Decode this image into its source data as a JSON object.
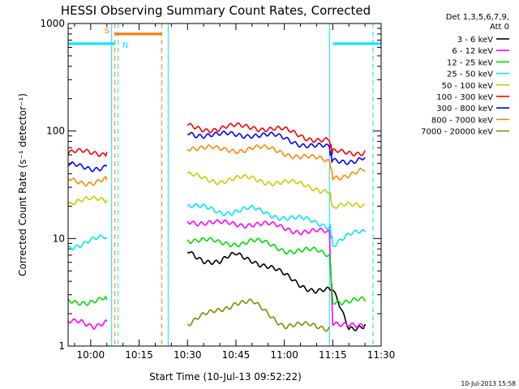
{
  "chart_data": {
    "type": "line",
    "title": "HESSI Observing Summary Count Rates, Corrected",
    "ylabel": "Corrected Count Rate (s⁻¹ detector⁻¹)",
    "xlabel": "Start Time (10-Jul-13 09:52:22)",
    "timestamp": "10-Jul-2013 15:58",
    "y_scale": "log",
    "ylim": [
      1,
      1000
    ],
    "y_ticks": [
      {
        "value": 1,
        "label": "1"
      },
      {
        "value": 10,
        "label": "10"
      },
      {
        "value": 100,
        "label": "100"
      },
      {
        "value": 1000,
        "label": "1000"
      }
    ],
    "xlim_minutes": [
      -7,
      90
    ],
    "x_ticks": [
      {
        "value": 0,
        "label": "10:00"
      },
      {
        "value": 15,
        "label": "10:15"
      },
      {
        "value": 30,
        "label": "10:30"
      },
      {
        "value": 45,
        "label": "10:45"
      },
      {
        "value": 60,
        "label": "11:00"
      },
      {
        "value": 75,
        "label": "11:15"
      },
      {
        "value": 90,
        "label": "11:30"
      }
    ],
    "legend_header": [
      "Det 1,3,5,6,7,9,",
      "Att 0"
    ],
    "legend_position": "right",
    "series": [
      {
        "name": "3 - 6 keV",
        "color": "#000000",
        "points": [
          [
            30,
            7.5
          ],
          [
            35,
            6.5
          ],
          [
            40,
            6
          ],
          [
            45,
            7
          ],
          [
            50,
            6.5
          ],
          [
            55,
            5.5
          ],
          [
            60,
            4.5
          ],
          [
            65,
            3.8
          ],
          [
            70,
            3.3
          ],
          [
            75,
            3.2
          ],
          [
            80,
            1.5
          ],
          [
            85,
            1.6
          ]
        ]
      },
      {
        "name": "6 - 12 keV",
        "color": "#ff00ff",
        "points": [
          [
            -7,
            1.6
          ],
          [
            -3,
            1.7
          ],
          [
            1,
            1.6
          ],
          [
            5,
            1.7
          ],
          [
            30,
            15
          ],
          [
            40,
            13.5
          ],
          [
            50,
            14
          ],
          [
            60,
            12.5
          ],
          [
            70,
            11.5
          ],
          [
            74,
            11
          ],
          [
            75,
            1.6
          ],
          [
            80,
            1.7
          ],
          [
            85,
            1.5
          ]
        ]
      },
      {
        "name": "12 - 25 keV",
        "color": "#00dd00",
        "points": [
          [
            -7,
            2.6
          ],
          [
            5,
            2.7
          ],
          [
            30,
            10
          ],
          [
            40,
            9
          ],
          [
            50,
            9.5
          ],
          [
            60,
            8
          ],
          [
            70,
            7.5
          ],
          [
            74,
            7
          ],
          [
            75,
            2.7
          ],
          [
            85,
            2.6
          ]
        ]
      },
      {
        "name": "25 - 50 keV",
        "color": "#00e5ff",
        "points": [
          [
            -7,
            8.5
          ],
          [
            0,
            9.5
          ],
          [
            5,
            10
          ],
          [
            30,
            20
          ],
          [
            40,
            18
          ],
          [
            50,
            18.5
          ],
          [
            60,
            16
          ],
          [
            70,
            14
          ],
          [
            74,
            13.5
          ],
          [
            75,
            9
          ],
          [
            80,
            10.5
          ],
          [
            85,
            11.5
          ]
        ]
      },
      {
        "name": "50 - 100 keV",
        "color": "#cccc00",
        "points": [
          [
            -7,
            22
          ],
          [
            0,
            22.5
          ],
          [
            5,
            23
          ],
          [
            30,
            38
          ],
          [
            40,
            35
          ],
          [
            50,
            36
          ],
          [
            60,
            33
          ],
          [
            70,
            30
          ],
          [
            74,
            28
          ],
          [
            75,
            19
          ],
          [
            80,
            20
          ],
          [
            85,
            21
          ]
        ]
      },
      {
        "name": "100 - 300 keV",
        "color": "#ff0000",
        "points": [
          [
            -7,
            63
          ],
          [
            0,
            62
          ],
          [
            5,
            64
          ],
          [
            30,
            110
          ],
          [
            40,
            105
          ],
          [
            50,
            112
          ],
          [
            60,
            100
          ],
          [
            70,
            85
          ],
          [
            74,
            80
          ],
          [
            75,
            62
          ],
          [
            80,
            63
          ],
          [
            85,
            66
          ]
        ]
      },
      {
        "name": "300 - 800 keV",
        "color": "#0000ff",
        "points": [
          [
            -7,
            47
          ],
          [
            0,
            46
          ],
          [
            5,
            48
          ],
          [
            30,
            98
          ],
          [
            40,
            90
          ],
          [
            50,
            95
          ],
          [
            60,
            85
          ],
          [
            70,
            72
          ],
          [
            74,
            68
          ],
          [
            75,
            52
          ],
          [
            80,
            54
          ],
          [
            85,
            57
          ]
        ]
      },
      {
        "name": "800 - 7000 keV",
        "color": "#ff8800",
        "points": [
          [
            -7,
            35
          ],
          [
            0,
            34
          ],
          [
            5,
            35
          ],
          [
            30,
            73
          ],
          [
            40,
            66
          ],
          [
            50,
            70
          ],
          [
            60,
            64
          ],
          [
            70,
            54
          ],
          [
            74,
            52
          ],
          [
            75,
            38
          ],
          [
            80,
            40
          ],
          [
            85,
            42
          ]
        ]
      },
      {
        "name": "7000 - 20000 keV",
        "color": "#888800",
        "points": [
          [
            30,
            1.6
          ],
          [
            40,
            2.2
          ],
          [
            45,
            2.6
          ],
          [
            50,
            2.5
          ],
          [
            55,
            2
          ],
          [
            60,
            1.6
          ],
          [
            70,
            1.5
          ],
          [
            74,
            1.5
          ]
        ]
      }
    ],
    "saa_flag": {
      "label": "S",
      "color": "#ff7700",
      "value": 800,
      "x_start": 7.5,
      "x_end": 22
    },
    "night_flag": {
      "label": "N",
      "color": "#00e5ff",
      "value": 650,
      "segments": [
        [
          -7,
          7.5
        ],
        [
          75,
          90
        ]
      ]
    },
    "dashed_lines": [
      {
        "x": 7.5,
        "color": "#ff7700"
      },
      {
        "x": 22,
        "color": "#ff7700"
      },
      {
        "x": 8.5,
        "color": "#00e5ff"
      },
      {
        "x": 87.5,
        "color": "#00e5ff"
      }
    ],
    "solid_lines": [
      {
        "x": 6.5,
        "color": "#00e5ff"
      },
      {
        "x": 24,
        "color": "#00e5ff"
      },
      {
        "x": 74,
        "color": "#00e5ff"
      }
    ]
  }
}
